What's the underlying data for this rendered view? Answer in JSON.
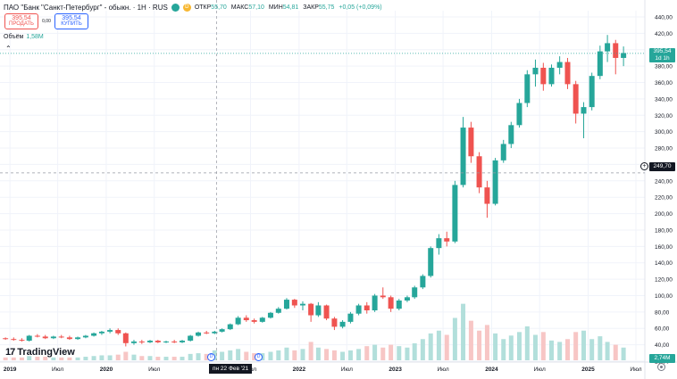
{
  "header": {
    "instrument_title": "ПАО \"Банк \"Санкт-Петербург\" - обыкн. · 1Н · RUS",
    "status_dot_color": "#26a69a",
    "event_badge": "D",
    "ohlc": {
      "open_label": "ОТКР",
      "open_value": "55,70",
      "high_label": "МАКС",
      "high_value": "57,10",
      "low_label": "МИН",
      "low_value": "54,81",
      "close_label": "ЗАКР",
      "close_value": "55,75",
      "change": "+0,05 (+0,09%)"
    }
  },
  "trade": {
    "sell_price": "395,54",
    "sell_label": "ПРОДАТЬ",
    "spread": "0,00",
    "buy_price": "395,54",
    "buy_label": "КУПИТЬ"
  },
  "volume_indicator": {
    "label": "Объём",
    "value": "1,58M"
  },
  "branding": {
    "logo_text": "TradingView"
  },
  "price_scale": {
    "ticks": [
      "440,00",
      "420,00",
      "400,00",
      "380,00",
      "360,00",
      "340,00",
      "320,00",
      "300,00",
      "280,00",
      "260,00",
      "240,00",
      "220,00",
      "200,00",
      "180,00",
      "160,00",
      "140,00",
      "120,00",
      "100,00",
      "80,00",
      "60,00",
      "40,00",
      "20,00"
    ],
    "last_price_tag": "395,54",
    "last_price_timer": "1d 1h",
    "crosshair_price_tag": "249,70",
    "volume_tag": "2,74M"
  },
  "time_scale": {
    "labels": [
      "2019",
      "Июл",
      "2020",
      "Июл",
      "Июл",
      "2022",
      "Июл",
      "2023",
      "Июл",
      "2024",
      "Июл",
      "2025",
      "Июл"
    ],
    "crosshair_date": "пн 22 Фев '21",
    "dividend_marker": "D"
  },
  "colors": {
    "up": "#26a69a",
    "down": "#ef5350",
    "grid": "#f0f3fa",
    "volume_up": "#b2dfdb",
    "volume_down": "#f7c6c5"
  },
  "chart_data": {
    "type": "candlestick",
    "y_axis_range": [
      20,
      440
    ],
    "x_axis_range": [
      "2018-12",
      "2025-07"
    ],
    "series": [
      {
        "name": "price",
        "points": [
          [
            "2018-12-15",
            48,
            49,
            46,
            47
          ],
          [
            "2019-01-15",
            47,
            49,
            45,
            46
          ],
          [
            "2019-02-15",
            46,
            48,
            44,
            45
          ],
          [
            "2019-03-15",
            45,
            52,
            44,
            51
          ],
          [
            "2019-04-15",
            51,
            53,
            49,
            50
          ],
          [
            "2019-05-15",
            50,
            52,
            47,
            48
          ],
          [
            "2019-06-15",
            48,
            51,
            47,
            50
          ],
          [
            "2019-07-15",
            50,
            52,
            48,
            49
          ],
          [
            "2019-08-15",
            49,
            51,
            46,
            47
          ],
          [
            "2019-09-15",
            47,
            50,
            46,
            49
          ],
          [
            "2019-10-15",
            49,
            52,
            48,
            51
          ],
          [
            "2019-11-15",
            51,
            55,
            50,
            54
          ],
          [
            "2019-12-15",
            54,
            57,
            52,
            56
          ],
          [
            "2020-01-15",
            56,
            60,
            54,
            58
          ],
          [
            "2020-02-15",
            58,
            60,
            52,
            54
          ],
          [
            "2020-03-15",
            54,
            55,
            38,
            42
          ],
          [
            "2020-04-15",
            42,
            46,
            40,
            44
          ],
          [
            "2020-05-15",
            44,
            46,
            41,
            43
          ],
          [
            "2020-06-15",
            43,
            46,
            42,
            45
          ],
          [
            "2020-07-15",
            45,
            46,
            42,
            43
          ],
          [
            "2020-08-15",
            43,
            45,
            42,
            44
          ],
          [
            "2020-09-15",
            44,
            46,
            42,
            43
          ],
          [
            "2020-10-15",
            43,
            46,
            42,
            45
          ],
          [
            "2020-11-15",
            45,
            52,
            44,
            51
          ],
          [
            "2020-12-15",
            51,
            56,
            50,
            55
          ],
          [
            "2021-01-15",
            55,
            57,
            53,
            54
          ],
          [
            "2021-02-15",
            54,
            57,
            53,
            56
          ],
          [
            "2021-03-15",
            56,
            60,
            55,
            59
          ],
          [
            "2021-04-15",
            59,
            66,
            58,
            65
          ],
          [
            "2021-05-15",
            65,
            75,
            64,
            73
          ],
          [
            "2021-06-15",
            73,
            76,
            68,
            70
          ],
          [
            "2021-07-15",
            70,
            72,
            66,
            68
          ],
          [
            "2021-08-15",
            68,
            74,
            67,
            73
          ],
          [
            "2021-09-15",
            73,
            80,
            72,
            79
          ],
          [
            "2021-10-15",
            79,
            86,
            78,
            84
          ],
          [
            "2021-11-15",
            84,
            97,
            83,
            95
          ],
          [
            "2021-12-15",
            95,
            96,
            85,
            88
          ],
          [
            "2022-01-15",
            88,
            93,
            82,
            90
          ],
          [
            "2022-02-15",
            90,
            91,
            68,
            76
          ],
          [
            "2022-03-15",
            76,
            92,
            74,
            88
          ],
          [
            "2022-04-15",
            88,
            89,
            70,
            72
          ],
          [
            "2022-05-15",
            72,
            74,
            58,
            62
          ],
          [
            "2022-06-15",
            62,
            70,
            60,
            68
          ],
          [
            "2022-07-15",
            68,
            80,
            66,
            78
          ],
          [
            "2022-08-15",
            78,
            90,
            76,
            88
          ],
          [
            "2022-09-15",
            88,
            92,
            78,
            82
          ],
          [
            "2022-10-15",
            82,
            102,
            80,
            100
          ],
          [
            "2022-11-15",
            100,
            110,
            96,
            98
          ],
          [
            "2022-12-15",
            98,
            100,
            80,
            84
          ],
          [
            "2023-01-15",
            84,
            96,
            82,
            94
          ],
          [
            "2023-02-15",
            94,
            100,
            92,
            98
          ],
          [
            "2023-03-15",
            98,
            112,
            96,
            110
          ],
          [
            "2023-04-15",
            110,
            126,
            108,
            124
          ],
          [
            "2023-05-15",
            124,
            160,
            122,
            158
          ],
          [
            "2023-06-15",
            158,
            175,
            150,
            170
          ],
          [
            "2023-07-15",
            170,
            178,
            160,
            166
          ],
          [
            "2023-08-15",
            166,
            240,
            164,
            235
          ],
          [
            "2023-09-15",
            235,
            318,
            232,
            305
          ],
          [
            "2023-10-15",
            305,
            312,
            262,
            270
          ],
          [
            "2023-11-15",
            270,
            275,
            225,
            232
          ],
          [
            "2023-12-15",
            232,
            240,
            195,
            212
          ],
          [
            "2024-01-15",
            212,
            268,
            210,
            265
          ],
          [
            "2024-02-15",
            265,
            290,
            262,
            285
          ],
          [
            "2024-03-15",
            285,
            312,
            280,
            308
          ],
          [
            "2024-04-15",
            308,
            340,
            305,
            335
          ],
          [
            "2024-05-15",
            335,
            375,
            330,
            370
          ],
          [
            "2024-06-15",
            370,
            388,
            355,
            378
          ],
          [
            "2024-07-15",
            378,
            384,
            350,
            358
          ],
          [
            "2024-08-15",
            358,
            382,
            355,
            378
          ],
          [
            "2024-09-15",
            378,
            392,
            370,
            385
          ],
          [
            "2024-10-15",
            385,
            390,
            352,
            358
          ],
          [
            "2024-11-15",
            358,
            362,
            310,
            322
          ],
          [
            "2024-12-15",
            322,
            336,
            292,
            330
          ],
          [
            "2025-01-15",
            330,
            372,
            326,
            368
          ],
          [
            "2025-02-15",
            368,
            405,
            364,
            398
          ],
          [
            "2025-03-15",
            398,
            418,
            385,
            408
          ],
          [
            "2025-04-15",
            408,
            412,
            370,
            390
          ],
          [
            "2025-05-15",
            390,
            404,
            380,
            396
          ]
        ]
      },
      {
        "name": "volume",
        "points": [
          [
            "2018-12-15",
            4
          ],
          [
            "2019-01-15",
            4
          ],
          [
            "2019-02-15",
            4
          ],
          [
            "2019-03-15",
            6
          ],
          [
            "2019-04-15",
            5
          ],
          [
            "2019-05-15",
            5
          ],
          [
            "2019-06-15",
            4
          ],
          [
            "2019-07-15",
            4
          ],
          [
            "2019-08-15",
            4
          ],
          [
            "2019-09-15",
            4
          ],
          [
            "2019-10-15",
            5
          ],
          [
            "2019-11-15",
            6
          ],
          [
            "2019-12-15",
            7
          ],
          [
            "2020-01-15",
            7
          ],
          [
            "2020-02-15",
            8
          ],
          [
            "2020-03-15",
            12
          ],
          [
            "2020-04-15",
            8
          ],
          [
            "2020-05-15",
            6
          ],
          [
            "2020-06-15",
            6
          ],
          [
            "2020-07-15",
            5
          ],
          [
            "2020-08-15",
            5
          ],
          [
            "2020-09-15",
            5
          ],
          [
            "2020-10-15",
            5
          ],
          [
            "2020-11-15",
            9
          ],
          [
            "2020-12-15",
            10
          ],
          [
            "2021-01-15",
            9
          ],
          [
            "2021-02-15",
            14
          ],
          [
            "2021-03-15",
            12
          ],
          [
            "2021-04-15",
            14
          ],
          [
            "2021-05-15",
            16
          ],
          [
            "2021-06-15",
            12
          ],
          [
            "2021-07-15",
            10
          ],
          [
            "2021-08-15",
            10
          ],
          [
            "2021-09-15",
            12
          ],
          [
            "2021-10-15",
            14
          ],
          [
            "2021-11-15",
            18
          ],
          [
            "2021-12-15",
            14
          ],
          [
            "2022-01-15",
            16
          ],
          [
            "2022-02-15",
            26
          ],
          [
            "2022-03-15",
            18
          ],
          [
            "2022-04-15",
            16
          ],
          [
            "2022-05-15",
            14
          ],
          [
            "2022-06-15",
            12
          ],
          [
            "2022-07-15",
            14
          ],
          [
            "2022-08-15",
            16
          ],
          [
            "2022-09-15",
            20
          ],
          [
            "2022-10-15",
            22
          ],
          [
            "2022-11-15",
            18
          ],
          [
            "2022-12-15",
            22
          ],
          [
            "2023-01-15",
            20
          ],
          [
            "2023-02-15",
            18
          ],
          [
            "2023-03-15",
            24
          ],
          [
            "2023-04-15",
            30
          ],
          [
            "2023-05-15",
            38
          ],
          [
            "2023-06-15",
            42
          ],
          [
            "2023-07-15",
            36
          ],
          [
            "2023-08-15",
            60
          ],
          [
            "2023-09-15",
            80
          ],
          [
            "2023-10-15",
            56
          ],
          [
            "2023-11-15",
            42
          ],
          [
            "2023-12-15",
            50
          ],
          [
            "2024-01-15",
            38
          ],
          [
            "2024-02-15",
            30
          ],
          [
            "2024-03-15",
            35
          ],
          [
            "2024-04-15",
            40
          ],
          [
            "2024-05-15",
            48
          ],
          [
            "2024-06-15",
            36
          ],
          [
            "2024-07-15",
            40
          ],
          [
            "2024-08-15",
            28
          ],
          [
            "2024-09-15",
            26
          ],
          [
            "2024-10-15",
            30
          ],
          [
            "2024-11-15",
            40
          ],
          [
            "2024-12-15",
            42
          ],
          [
            "2025-01-15",
            30
          ],
          [
            "2025-02-15",
            34
          ],
          [
            "2025-03-15",
            26
          ],
          [
            "2025-04-15",
            22
          ],
          [
            "2025-05-15",
            18
          ]
        ]
      }
    ],
    "grid": true
  }
}
